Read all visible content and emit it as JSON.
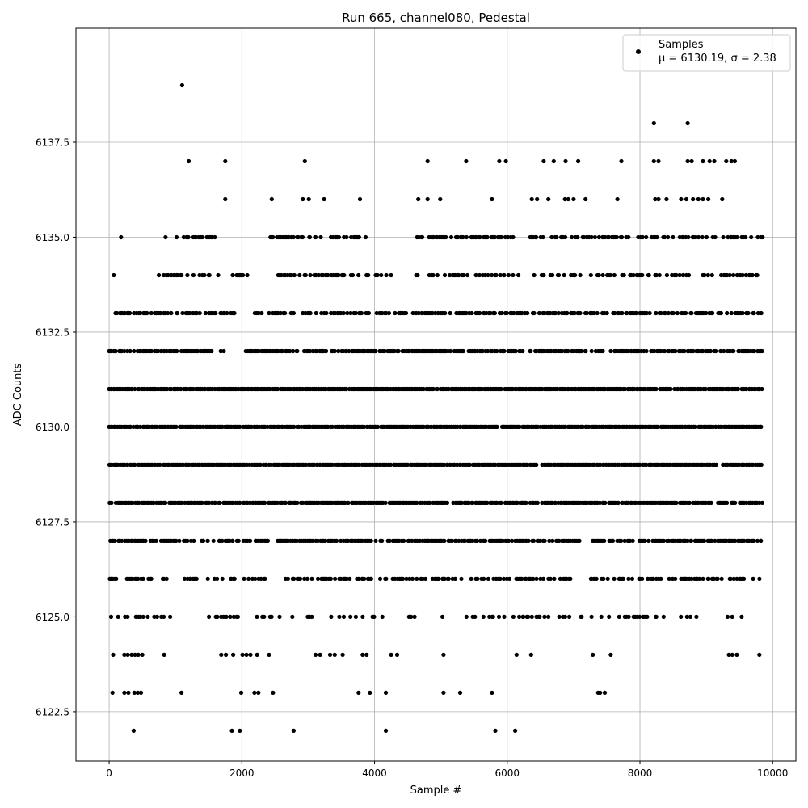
{
  "chart_data": {
    "type": "scatter",
    "title": "Run 665, channel080, Pedestal",
    "xlabel": "Sample #",
    "ylabel": "ADC Counts",
    "xlim": [
      -500,
      10350
    ],
    "ylim": [
      6121.2,
      6140.5
    ],
    "xticks": [
      0,
      2000,
      4000,
      6000,
      8000,
      10000
    ],
    "xtick_labels": [
      "0",
      "2000",
      "4000",
      "6000",
      "8000",
      "10000"
    ],
    "yticks": [
      6122.5,
      6125.0,
      6127.5,
      6130.0,
      6132.5,
      6135.0,
      6137.5
    ],
    "ytick_labels": [
      "6122.5",
      "6125.0",
      "6127.5",
      "6130.0",
      "6132.5",
      "6135.0",
      "6137.5"
    ],
    "grid": true,
    "marker_color": "#000000",
    "legend": {
      "placement": "top-right",
      "entries": [
        {
          "label": "Samples",
          "stats": "μ = 6130.19, σ = 2.38"
        }
      ]
    },
    "series": [
      {
        "name": "Samples",
        "x_range": [
          0,
          9850
        ],
        "points": [
          {
            "x": 1100,
            "y": 6139
          },
          {
            "x": 8210,
            "y": 6138
          },
          {
            "x": 8720,
            "y": 6138
          },
          {
            "x": 1200,
            "y": 6137
          },
          {
            "x": 1750,
            "y": 6137
          },
          {
            "x": 2950,
            "y": 6137
          },
          {
            "x": 4800,
            "y": 6137
          },
          {
            "x": 5380,
            "y": 6137
          },
          {
            "x": 5880,
            "y": 6137
          },
          {
            "x": 5980,
            "y": 6137
          },
          {
            "x": 6550,
            "y": 6137
          },
          {
            "x": 6700,
            "y": 6137
          },
          {
            "x": 6880,
            "y": 6137
          },
          {
            "x": 7070,
            "y": 6137
          },
          {
            "x": 7720,
            "y": 6137
          },
          {
            "x": 8210,
            "y": 6137
          },
          {
            "x": 8280,
            "y": 6137
          },
          {
            "x": 8720,
            "y": 6137
          },
          {
            "x": 8780,
            "y": 6137
          },
          {
            "x": 8950,
            "y": 6137
          },
          {
            "x": 9050,
            "y": 6137
          },
          {
            "x": 9120,
            "y": 6137
          },
          {
            "x": 9300,
            "y": 6137
          },
          {
            "x": 9380,
            "y": 6137
          },
          {
            "x": 9430,
            "y": 6137
          },
          {
            "x": 1750,
            "y": 6136
          },
          {
            "x": 2450,
            "y": 6136
          },
          {
            "x": 2920,
            "y": 6136
          },
          {
            "x": 3010,
            "y": 6136
          },
          {
            "x": 3240,
            "y": 6136
          },
          {
            "x": 3780,
            "y": 6136
          },
          {
            "x": 4660,
            "y": 6136
          },
          {
            "x": 4800,
            "y": 6136
          },
          {
            "x": 4990,
            "y": 6136
          },
          {
            "x": 5770,
            "y": 6136
          },
          {
            "x": 6370,
            "y": 6136
          },
          {
            "x": 6450,
            "y": 6136
          },
          {
            "x": 6620,
            "y": 6136
          },
          {
            "x": 6870,
            "y": 6136
          },
          {
            "x": 6920,
            "y": 6136
          },
          {
            "x": 7000,
            "y": 6136
          },
          {
            "x": 7180,
            "y": 6136
          },
          {
            "x": 7660,
            "y": 6136
          },
          {
            "x": 8230,
            "y": 6136
          },
          {
            "x": 8280,
            "y": 6136
          },
          {
            "x": 8400,
            "y": 6136
          },
          {
            "x": 8620,
            "y": 6136
          },
          {
            "x": 8700,
            "y": 6136
          },
          {
            "x": 8800,
            "y": 6136
          },
          {
            "x": 8880,
            "y": 6136
          },
          {
            "x": 8950,
            "y": 6136
          },
          {
            "x": 9030,
            "y": 6136
          },
          {
            "x": 9240,
            "y": 6136
          },
          {
            "x": 180,
            "y": 6135
          },
          {
            "x": 850,
            "y": 6135
          },
          {
            "x": 70,
            "y": 6134
          },
          {
            "x": 370,
            "y": 6122
          },
          {
            "x": 1850,
            "y": 6122
          },
          {
            "x": 1970,
            "y": 6122
          },
          {
            "x": 2780,
            "y": 6122
          },
          {
            "x": 4170,
            "y": 6122
          },
          {
            "x": 5820,
            "y": 6122
          },
          {
            "x": 6120,
            "y": 6122
          },
          {
            "x": 50,
            "y": 6123
          },
          {
            "x": 230,
            "y": 6123
          },
          {
            "x": 290,
            "y": 6123
          },
          {
            "x": 380,
            "y": 6123
          },
          {
            "x": 430,
            "y": 6123
          },
          {
            "x": 480,
            "y": 6123
          },
          {
            "x": 1090,
            "y": 6123
          },
          {
            "x": 1990,
            "y": 6123
          },
          {
            "x": 2190,
            "y": 6123
          },
          {
            "x": 2250,
            "y": 6123
          },
          {
            "x": 2470,
            "y": 6123
          },
          {
            "x": 3760,
            "y": 6123
          },
          {
            "x": 3930,
            "y": 6123
          },
          {
            "x": 4170,
            "y": 6123
          },
          {
            "x": 5040,
            "y": 6123
          },
          {
            "x": 5290,
            "y": 6123
          },
          {
            "x": 5770,
            "y": 6123
          },
          {
            "x": 7370,
            "y": 6123
          },
          {
            "x": 7400,
            "y": 6123
          },
          {
            "x": 7470,
            "y": 6123
          },
          {
            "x": 60,
            "y": 6124
          },
          {
            "x": 230,
            "y": 6124
          },
          {
            "x": 280,
            "y": 6124
          },
          {
            "x": 340,
            "y": 6124
          },
          {
            "x": 390,
            "y": 6124
          },
          {
            "x": 440,
            "y": 6124
          },
          {
            "x": 500,
            "y": 6124
          },
          {
            "x": 830,
            "y": 6124
          },
          {
            "x": 1690,
            "y": 6124
          },
          {
            "x": 1760,
            "y": 6124
          },
          {
            "x": 1870,
            "y": 6124
          },
          {
            "x": 2010,
            "y": 6124
          },
          {
            "x": 2070,
            "y": 6124
          },
          {
            "x": 2130,
            "y": 6124
          },
          {
            "x": 2230,
            "y": 6124
          },
          {
            "x": 2410,
            "y": 6124
          },
          {
            "x": 3110,
            "y": 6124
          },
          {
            "x": 3180,
            "y": 6124
          },
          {
            "x": 3330,
            "y": 6124
          },
          {
            "x": 3400,
            "y": 6124
          },
          {
            "x": 3520,
            "y": 6124
          },
          {
            "x": 3820,
            "y": 6124
          },
          {
            "x": 3880,
            "y": 6124
          },
          {
            "x": 4250,
            "y": 6124
          },
          {
            "x": 4340,
            "y": 6124
          },
          {
            "x": 5040,
            "y": 6124
          },
          {
            "x": 6140,
            "y": 6124
          },
          {
            "x": 6360,
            "y": 6124
          },
          {
            "x": 7290,
            "y": 6124
          },
          {
            "x": 7560,
            "y": 6124
          },
          {
            "x": 9340,
            "y": 6124
          },
          {
            "x": 9390,
            "y": 6124
          },
          {
            "x": 9460,
            "y": 6124
          },
          {
            "x": 9800,
            "y": 6124
          }
        ],
        "dense_levels": [
          {
            "y": 6135,
            "from": 960,
            "to": 9850,
            "gaps": [
              [
                1640,
                2430
              ],
              [
                3930,
                4560
              ],
              [
                6150,
                6300
              ]
            ],
            "density": 0.45
          },
          {
            "y": 6134,
            "from": 750,
            "to": 9850,
            "gaps": [
              [
                2130,
                2450
              ],
              [
                4300,
                4610
              ],
              [
                6180,
                6320
              ]
            ],
            "density": 0.4
          },
          {
            "y": 6133,
            "from": 70,
            "to": 9850,
            "gaps": [
              [
                1990,
                2200
              ]
            ],
            "density": 0.55
          },
          {
            "y": 6132,
            "from": 0,
            "to": 9850,
            "gaps": [
              [
                1800,
                2030
              ],
              [
                7450,
                7560
              ]
            ],
            "density": 0.75
          },
          {
            "y": 6131,
            "from": 0,
            "to": 9850,
            "gaps": [],
            "density": 0.95
          },
          {
            "y": 6130,
            "from": 0,
            "to": 9850,
            "gaps": [],
            "density": 0.95
          },
          {
            "y": 6129,
            "from": 0,
            "to": 9850,
            "gaps": [],
            "density": 0.95
          },
          {
            "y": 6128,
            "from": 0,
            "to": 9850,
            "gaps": [
              [
                9070,
                9160
              ]
            ],
            "density": 0.85
          },
          {
            "y": 6127,
            "from": 0,
            "to": 9850,
            "gaps": [
              [
                1290,
                1360
              ],
              [
                6570,
                6640
              ],
              [
                7150,
                7270
              ]
            ],
            "density": 0.7
          },
          {
            "y": 6126,
            "from": 0,
            "to": 9830,
            "gaps": [
              [
                900,
                1080
              ],
              [
                2500,
                2600
              ],
              [
                7060,
                7240
              ]
            ],
            "density": 0.45
          },
          {
            "y": 6125,
            "from": 0,
            "to": 9570,
            "gaps": [
              [
                990,
                1470
              ],
              [
                4600,
                5010
              ],
              [
                8850,
                9310
              ]
            ],
            "density": 0.3
          }
        ]
      }
    ]
  }
}
